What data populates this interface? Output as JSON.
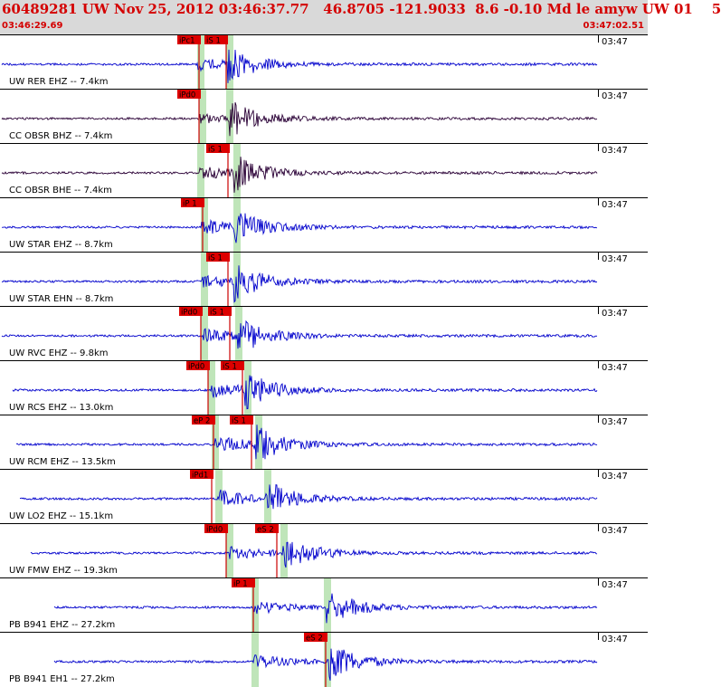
{
  "header": {
    "title": "60489281 UW Nov 25, 2012 03:46:37.77   46.8705 -121.9033  8.6 -0.10 Md le amyw UW 01    5",
    "time_start": "03:46:29.69",
    "time_end": "03:47:02.51"
  },
  "colors": {
    "header_bg": "#d9d9d9",
    "header_text": "#d40000",
    "pick_bg": "#dd0000",
    "window_shade": "#bfe5b9",
    "trace_blue": "#0000cc",
    "trace_dark": "#220033"
  },
  "panels": [
    {
      "label": "UW RER EHZ -- 7.4km",
      "clock": "03:47",
      "trace_color": "dark-blue",
      "picks": [
        "iPc1",
        "iS 1"
      ]
    },
    {
      "label": "CC OBSR BHZ -- 7.4km",
      "clock": "03:47",
      "trace_color": "dark-purple",
      "picks": [
        "iPd0"
      ]
    },
    {
      "label": "CC OBSR BHE -- 7.4km",
      "clock": "03:47",
      "trace_color": "dark-purple",
      "picks": [
        "iS 1"
      ]
    },
    {
      "label": "UW STAR EHZ -- 8.7km",
      "clock": "03:47",
      "trace_color": "blue",
      "picks": [
        "iP 1"
      ]
    },
    {
      "label": "UW STAR EHN -- 8.7km",
      "clock": "03:47",
      "trace_color": "blue",
      "picks": [
        "iS 1"
      ]
    },
    {
      "label": "UW RVC EHZ -- 9.8km",
      "clock": "03:47",
      "trace_color": "blue",
      "picks": [
        "iPd0",
        "iS 1"
      ]
    },
    {
      "label": "UW RCS EHZ -- 13.0km",
      "clock": "03:47",
      "trace_color": "blue",
      "picks": [
        "iPd0",
        "iS 1"
      ]
    },
    {
      "label": "UW RCM EHZ -- 13.5km",
      "clock": "03:47",
      "trace_color": "blue",
      "picks": [
        "eP 2",
        "iS 1"
      ]
    },
    {
      "label": "UW LO2 EHZ -- 15.1km",
      "clock": "03:47",
      "trace_color": "blue",
      "picks": [
        "iPd1"
      ]
    },
    {
      "label": "UW FMW EHZ -- 19.3km",
      "clock": "03:47",
      "trace_color": "blue",
      "picks": [
        "iPd0",
        "eS 2"
      ]
    },
    {
      "label": "PB B941 EHZ -- 27.2km",
      "clock": "03:47",
      "trace_color": "blue",
      "picks": [
        "iP 1"
      ]
    },
    {
      "label": "PB B941 EH1 -- 27.2km",
      "clock": "03:47",
      "trace_color": "blue",
      "picks": [
        "eS 2"
      ]
    }
  ]
}
